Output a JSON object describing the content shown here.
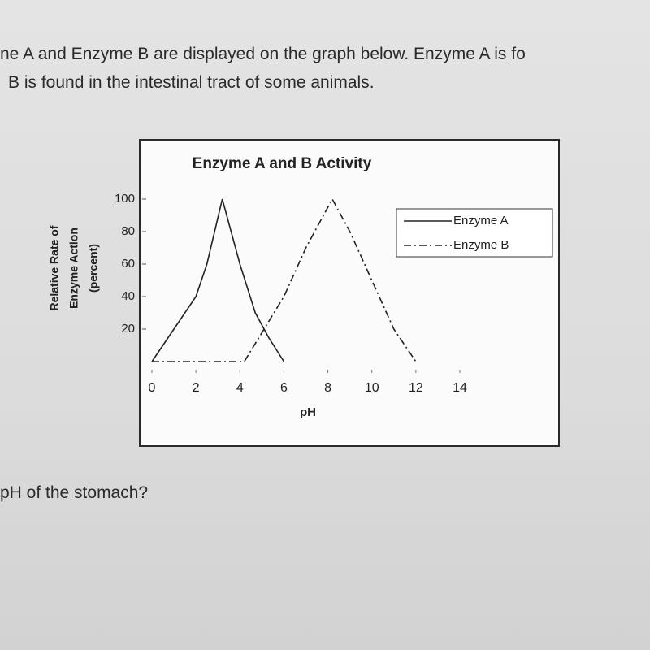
{
  "question": {
    "line_1": "ne A and Enzyme B are displayed on the graph below. Enzyme A is fo",
    "line_2": "B is found in the intestinal tract of some animals.",
    "line_3": "pH of the stomach?"
  },
  "chart_data": {
    "type": "line",
    "title": "Enzyme A and B Activity",
    "y_label": [
      "Relative Rate of",
      "Enzyme Action",
      "(percent)"
    ],
    "x_label": "pH",
    "xlim": [
      0,
      14
    ],
    "xticks": [
      0,
      2,
      4,
      6,
      8,
      10,
      12,
      14
    ],
    "ylim": [
      0,
      100
    ],
    "yticks": [
      20,
      40,
      60,
      80,
      100
    ],
    "legend": "top-right",
    "series": [
      {
        "name": "Enzyme A",
        "color": "#222222",
        "linestyle": "solid",
        "x": [
          0,
          1,
          2,
          2.5,
          3.2,
          4,
          4.7,
          5.3,
          6
        ],
        "values": [
          0,
          20,
          40,
          60,
          100,
          60,
          30,
          15,
          0
        ]
      },
      {
        "name": "Enzyme B",
        "color": "#222222",
        "linestyle": "dashdot",
        "x": [
          0,
          4.2,
          6,
          7,
          8.2,
          9,
          10,
          11,
          12
        ],
        "values": [
          0,
          0,
          40,
          70,
          100,
          80,
          50,
          20,
          0
        ]
      }
    ]
  }
}
